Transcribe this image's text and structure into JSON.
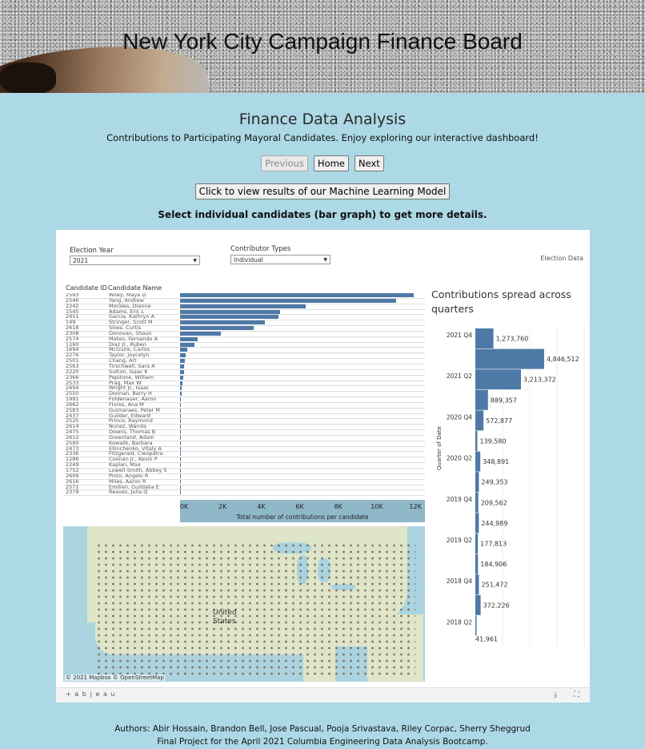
{
  "banner": {
    "title": "New York City Campaign Finance Board"
  },
  "header": {
    "title": "Finance Data Analysis",
    "subtitle": "Contributions to Participating Mayoral Candidates. Enjoy exploring our interactive dashboard!"
  },
  "nav": {
    "previous": "Previous",
    "home": "Home",
    "next": "Next"
  },
  "ml_button": "Click to view results of our Machine Learning Model",
  "hint": "Select individual candidates (bar graph) to get more details.",
  "dashboard": {
    "filters": {
      "election_year_label": "Election Year",
      "election_year_value": "2021",
      "contributor_types_label": "Contributor Types",
      "contributor_types_value": "Individual"
    },
    "election_data_label": "Election Data",
    "table_headers": {
      "id": "Candidate ID",
      "name": "Candidate Name"
    },
    "candidates": [
      {
        "id": "2593",
        "name": "Wiley, Maya D",
        "value": 12100
      },
      {
        "id": "2546",
        "name": "Yang, Andrew",
        "value": 11200
      },
      {
        "id": "2242",
        "name": "Morales, Dianne",
        "value": 6500
      },
      {
        "id": "1545",
        "name": "Adams, Eric L",
        "value": 5200
      },
      {
        "id": "2451",
        "name": "Garcia, Kathryn A",
        "value": 5100
      },
      {
        "id": "149",
        "name": "Stringer, Scott M",
        "value": 4400
      },
      {
        "id": "2618",
        "name": "Sliwa, Curtis",
        "value": 3800
      },
      {
        "id": "2308",
        "name": "Donovan, Shaun",
        "value": 2100
      },
      {
        "id": "2574",
        "name": "Mateo, Fernando A",
        "value": 900
      },
      {
        "id": "1160",
        "name": "Diaz Jr., Ruben",
        "value": 750
      },
      {
        "id": "1694",
        "name": "McGuire, Carlos",
        "value": 380
      },
      {
        "id": "2276",
        "name": "Taylor, Joycelyn",
        "value": 300
      },
      {
        "id": "2501",
        "name": "Chang, Art",
        "value": 250
      },
      {
        "id": "2563",
        "name": "Tirschwell, Sara A",
        "value": 220
      },
      {
        "id": "2220",
        "name": "Sutton, Isaac K",
        "value": 190
      },
      {
        "id": "2366",
        "name": "Pepitone, William",
        "value": 160
      },
      {
        "id": "2533",
        "name": "Prag, Max W",
        "value": 120
      },
      {
        "id": "2494",
        "name": "Wright Jr., Isaac",
        "value": 90
      },
      {
        "id": "2550",
        "name": "Doonan, Barry H",
        "value": 70
      },
      {
        "id": "1991",
        "name": "Foldenauer, Aaron",
        "value": 60
      },
      {
        "id": "2662",
        "name": "Flores, Ana M",
        "value": 50
      },
      {
        "id": "2583",
        "name": "Guimaraes, Peter M",
        "value": 40
      },
      {
        "id": "2437",
        "name": "Guilder, Edward",
        "value": 30
      },
      {
        "id": "2525",
        "name": "Prince, Raymond",
        "value": 25
      },
      {
        "id": "2614",
        "name": "Nunez, Wanda",
        "value": 20
      },
      {
        "id": "2475",
        "name": "Downs, Thomas B",
        "value": 15
      },
      {
        "id": "2612",
        "name": "Greenland, Adam",
        "value": 12
      },
      {
        "id": "2590",
        "name": "Kowalik, Barbara",
        "value": 10
      },
      {
        "id": "2473",
        "name": "Ellinchenko, Vitaly A",
        "value": 8
      },
      {
        "id": "2336",
        "name": "Fitzgerald, Cleopatra",
        "value": 6
      },
      {
        "id": "1286",
        "name": "Coonan Jr., Kevin P",
        "value": 5
      },
      {
        "id": "2249",
        "name": "Kaplan, Max",
        "value": 4
      },
      {
        "id": "1752",
        "name": "Lowell-Smith, Abbey S",
        "value": 3
      },
      {
        "id": "2609",
        "name": "Pinto, Angelo R",
        "value": 2
      },
      {
        "id": "2616",
        "name": "Miles, Aaron R",
        "value": 2
      },
      {
        "id": "2571",
        "name": "Emilien, Guildalia E",
        "value": 1
      },
      {
        "id": "2379",
        "name": "Reaves, Julia Q",
        "value": 1
      }
    ],
    "bar_axis": {
      "ticks": [
        "0K",
        "2K",
        "4K",
        "6K",
        "8K",
        "10K",
        "12K"
      ],
      "label": "Total number of contributions per candidate",
      "max": 12700
    },
    "map": {
      "country_label_1": "United",
      "country_label_2": "States",
      "credit": "© 2021 Mapbox  © OpenStreetMap"
    },
    "quarters_title": "Contributions spread across quarters",
    "quarters_axis_label": "Quarter of Date",
    "toolbar_logo": "+ a b | e a u"
  },
  "chart_data": {
    "type": "bar",
    "title": "Contributions spread across quarters",
    "ylabel": "Quarter of Date",
    "tick_labels": [
      "2021 Q4",
      "2021 Q2",
      "2020 Q4",
      "2020 Q2",
      "2019 Q4",
      "2019 Q2",
      "2018 Q4",
      "2018 Q2"
    ],
    "values": [
      1273760,
      4846512,
      3213372,
      889357,
      572877,
      139580,
      348891,
      249353,
      209562,
      244989,
      177813,
      184906,
      251472,
      372226,
      41961
    ],
    "value_labels": [
      "1,273,760",
      "4,846,512",
      "3,213,372",
      "889,357",
      "572,877",
      "139,580",
      "348,891",
      "249,353",
      "209,562",
      "244,989",
      "177,813",
      "184,906",
      "251,472",
      "372,226",
      "41,961"
    ]
  },
  "footer": {
    "authors": "Authors: Abir Hossain, Brandon Bell, Jose Pascual, Pooja Srivastava, Riley Corpac, Sherry Sheggrud",
    "project": "Final Project for the April 2021 Columbia Engineering Data Analysis Bootcamp."
  }
}
